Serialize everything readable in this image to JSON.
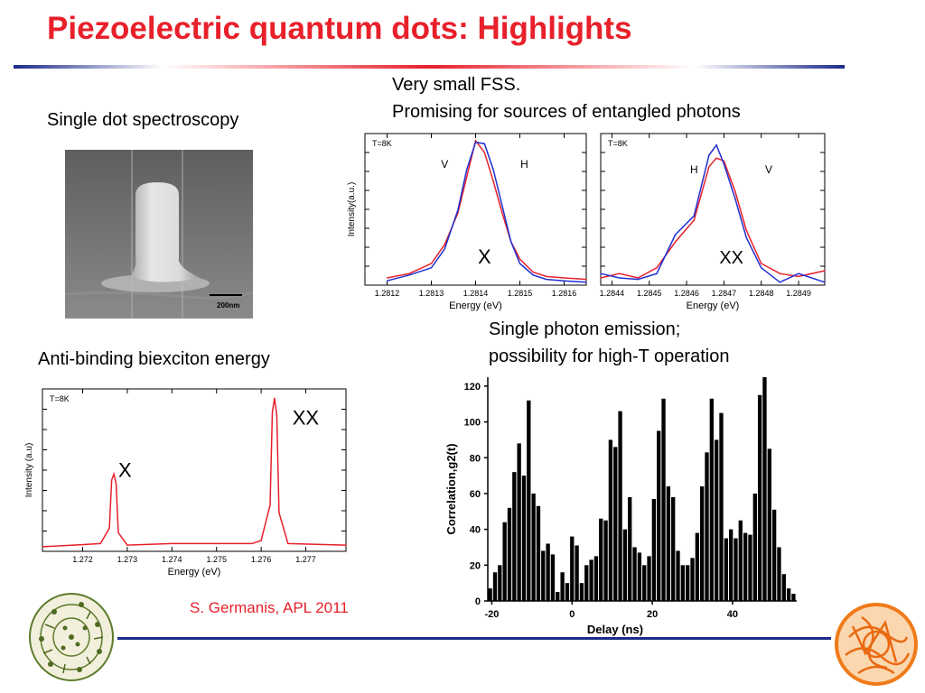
{
  "slide": {
    "title": "Piezoelectric quantum dots: Highlights",
    "captions": {
      "fss_line1": "Very small FSS.",
      "fss_line2": "Promising for sources of entangled photons",
      "single_dot": "Single dot spectroscopy",
      "biexciton": "Anti-binding biexciton energy",
      "emission_line1": "Single photon emission;",
      "emission_line2": "possibility for high-T operation"
    },
    "reference": "S. Germanis, APL 2011",
    "sem_scale": "200nm",
    "colors": {
      "title": "#e8202a",
      "rule_blue": "#1c2a8a",
      "series_red": "#e8202a",
      "series_blue": "#1f2fd0"
    },
    "logos": [
      "phaistos-disc-logo",
      "orange-circular-logo"
    ]
  },
  "chart_data": [
    {
      "type": "line",
      "temperature": "T=8K",
      "xlabel": "Energy (eV)",
      "ylabel": "Intensity(a.u.)",
      "xlim": [
        1.28115,
        1.28165
      ],
      "ylim": [
        0,
        1.05
      ],
      "xticks": [
        "1.2812",
        "1.2813",
        "1.2814",
        "1.2815",
        "1.2816"
      ],
      "peak_label": "X",
      "series": [
        {
          "name": "V",
          "color": "#e8202a",
          "x": [
            1.2812,
            1.28125,
            1.2813,
            1.28133,
            1.28136,
            1.28138,
            1.2814,
            1.28142,
            1.28144,
            1.28146,
            1.28148,
            1.2815,
            1.28153,
            1.28156,
            1.2816,
            1.28165
          ],
          "values": [
            0.05,
            0.08,
            0.15,
            0.28,
            0.5,
            0.75,
            1.0,
            0.92,
            0.72,
            0.5,
            0.3,
            0.18,
            0.09,
            0.06,
            0.05,
            0.04
          ]
        },
        {
          "name": "H",
          "color": "#1f2fd0",
          "x": [
            1.2812,
            1.28125,
            1.2813,
            1.28133,
            1.28136,
            1.28138,
            1.2814,
            1.28142,
            1.28144,
            1.28146,
            1.28148,
            1.2815,
            1.28153,
            1.28156,
            1.2816,
            1.28165
          ],
          "values": [
            0.03,
            0.07,
            0.12,
            0.25,
            0.52,
            0.8,
            0.99,
            0.98,
            0.8,
            0.55,
            0.3,
            0.15,
            0.07,
            0.04,
            0.03,
            0.02
          ]
        }
      ]
    },
    {
      "type": "line",
      "temperature": "T=8K",
      "xlabel": "Energy (eV)",
      "ylabel": "",
      "xlim": [
        1.28437,
        1.28497
      ],
      "ylim": [
        0,
        1.05
      ],
      "xticks": [
        "1.2844",
        "1.2845",
        "1.2846",
        "1.2847",
        "1.2848",
        "1.2849"
      ],
      "peak_label": "XX",
      "series": [
        {
          "name": "H",
          "color": "#e8202a",
          "x": [
            1.28437,
            1.28442,
            1.28447,
            1.28452,
            1.28457,
            1.28462,
            1.28466,
            1.28468,
            1.2847,
            1.28473,
            1.28476,
            1.2848,
            1.28485,
            1.2849,
            1.28497
          ],
          "values": [
            0.05,
            0.08,
            0.05,
            0.12,
            0.3,
            0.45,
            0.82,
            0.88,
            0.86,
            0.65,
            0.38,
            0.15,
            0.08,
            0.06,
            0.1
          ]
        },
        {
          "name": "V",
          "color": "#1f2fd0",
          "x": [
            1.28437,
            1.28442,
            1.28447,
            1.28452,
            1.28457,
            1.28462,
            1.28466,
            1.28468,
            1.2847,
            1.28473,
            1.28476,
            1.2848,
            1.28485,
            1.2849,
            1.28497
          ],
          "values": [
            0.08,
            0.05,
            0.04,
            0.08,
            0.35,
            0.48,
            0.9,
            0.97,
            0.84,
            0.6,
            0.33,
            0.12,
            0.02,
            0.08,
            0.02
          ]
        }
      ]
    },
    {
      "type": "line",
      "temperature": "T=8K",
      "xlabel": "Energy (eV)",
      "ylabel": "Intensity (a.u)",
      "xlim": [
        1.2711,
        1.2779
      ],
      "ylim": [
        0,
        1.05
      ],
      "xticks": [
        "1.272",
        "1.273",
        "1.274",
        "1.275",
        "1.276",
        "1.277"
      ],
      "peak_labels": [
        {
          "text": "X",
          "x": 1.2728,
          "y": 0.48
        },
        {
          "text": "XX",
          "x": 1.2767,
          "y": 0.82
        }
      ],
      "series": [
        {
          "name": "",
          "color": "#e8202a",
          "x": [
            1.2711,
            1.2718,
            1.2724,
            1.2726,
            1.27265,
            1.2727,
            1.27275,
            1.2728,
            1.273,
            1.274,
            1.275,
            1.2758,
            1.276,
            1.2762,
            1.27625,
            1.2763,
            1.27635,
            1.2764,
            1.2766,
            1.2779
          ],
          "values": [
            0.03,
            0.04,
            0.05,
            0.15,
            0.46,
            0.5,
            0.44,
            0.12,
            0.04,
            0.05,
            0.05,
            0.05,
            0.07,
            0.3,
            0.9,
            0.99,
            0.88,
            0.25,
            0.05,
            0.04
          ]
        }
      ]
    },
    {
      "type": "bar",
      "xlabel": "Delay (ns)",
      "ylabel": "Correlation,g2(t)",
      "xlim": [
        -21,
        56
      ],
      "ylim": [
        0,
        125
      ],
      "xticks": [
        "-20",
        "0",
        "20",
        "40"
      ],
      "yticks": [
        "0",
        "20",
        "40",
        "60",
        "80",
        "100",
        "120"
      ],
      "bin_width": 1.2,
      "x": [
        -20.4,
        -19.2,
        -18.0,
        -16.8,
        -15.6,
        -14.4,
        -13.2,
        -12.0,
        -10.8,
        -9.6,
        -8.4,
        -7.2,
        -6.0,
        -4.8,
        -3.6,
        -2.4,
        -1.2,
        0.0,
        1.2,
        2.4,
        3.6,
        4.8,
        6.0,
        7.2,
        8.4,
        9.6,
        10.8,
        12.0,
        13.2,
        14.4,
        15.6,
        16.8,
        18.0,
        19.2,
        20.4,
        21.6,
        22.8,
        24.0,
        25.2,
        26.4,
        27.6,
        28.8,
        30.0,
        31.2,
        32.4,
        33.6,
        34.8,
        36.0,
        37.2,
        38.4,
        39.6,
        40.8,
        42.0,
        43.2,
        44.4,
        45.6,
        46.8,
        48.0,
        49.2,
        50.4,
        51.6,
        52.8,
        54.0,
        55.2
      ],
      "values": [
        7,
        16,
        20,
        44,
        52,
        72,
        88,
        70,
        112,
        60,
        53,
        28,
        32,
        26,
        5,
        16,
        10,
        36,
        31,
        10,
        20,
        23,
        25,
        46,
        45,
        90,
        86,
        106,
        40,
        58,
        30,
        27,
        20,
        25,
        57,
        95,
        113,
        64,
        58,
        28,
        20,
        20,
        24,
        38,
        64,
        83,
        113,
        90,
        105,
        35,
        40,
        35,
        45,
        38,
        37,
        60,
        115,
        125,
        85,
        51,
        30,
        15,
        7,
        4
      ]
    }
  ]
}
